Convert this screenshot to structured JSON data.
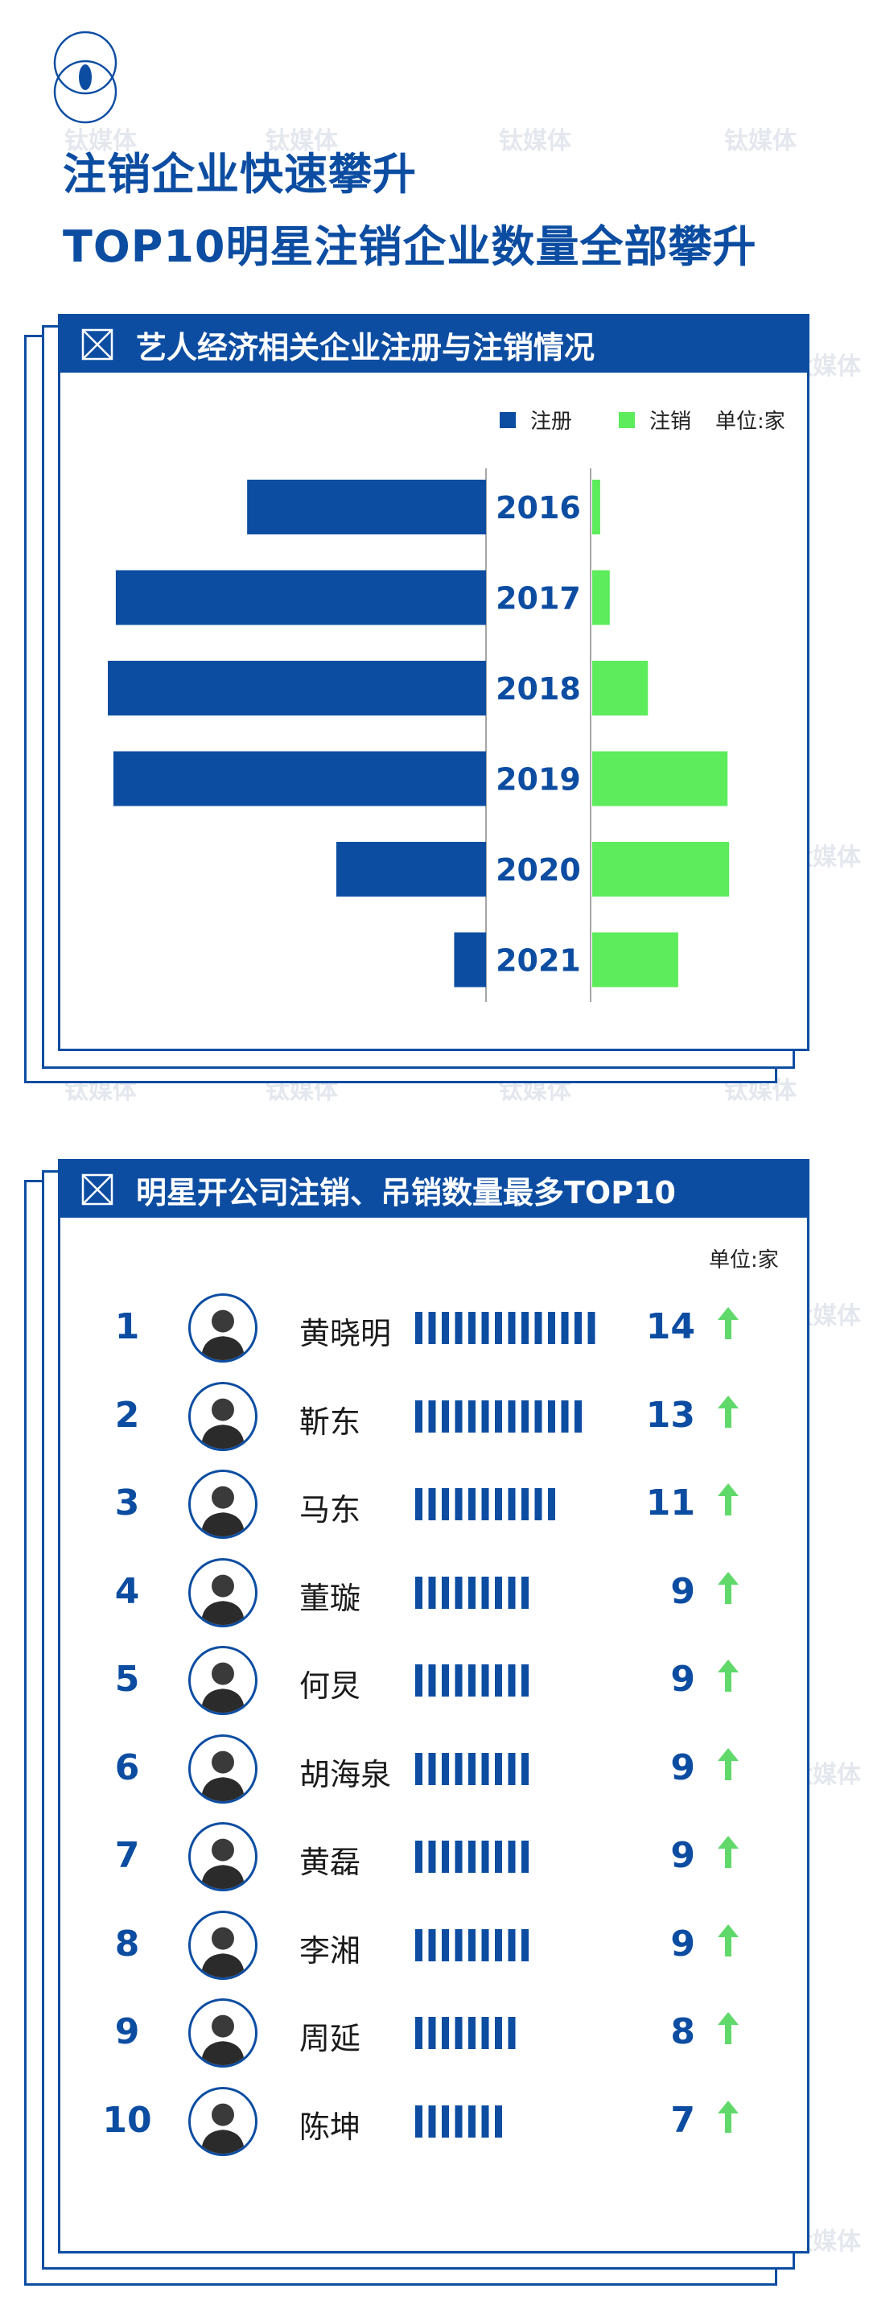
{
  "headline": {
    "line1": "注销企业快速攀升",
    "line2": "TOP10明星注销企业数量全部攀升"
  },
  "watermark": "钛媒体",
  "icons": {
    "logo": "circle-logo-icon",
    "panel_marker": "x-box-icon",
    "trend": "up-arrow-icon",
    "avatar": "person-avatar-icon"
  },
  "colors": {
    "brand_blue": "#0c4da2",
    "cancel_green": "#5cec5c",
    "arrow_green": "#61d96a"
  },
  "panel1": {
    "title": "艺人经济相关企业注册与注销情况",
    "legend": {
      "registered": "注册",
      "cancelled": "注销",
      "unit": "单位:家"
    }
  },
  "panel2": {
    "title": "明星开公司注销、吊销数量最多TOP10",
    "unit": "单位:家"
  },
  "chart_data": [
    {
      "type": "bar",
      "orientation": "horizontal-butterfly",
      "categories": [
        "2016",
        "2017",
        "2018",
        "2019",
        "2020",
        "2021"
      ],
      "series": [
        {
          "name": "注册",
          "color": "#0c4da2",
          "direction": "left",
          "values": [
            300,
            465,
            475,
            468,
            188,
            40
          ]
        },
        {
          "name": "注销",
          "color": "#5cec5c",
          "direction": "right",
          "values": [
            10,
            22,
            70,
            170,
            172,
            108
          ]
        }
      ],
      "unit": "单位:家",
      "axis_labels_shown": false,
      "grid": false,
      "legend_position": "top-right"
    },
    {
      "type": "bar",
      "orientation": "horizontal-ranking",
      "title": "明星开公司注销、吊销数量最多TOP10",
      "unit": "单位:家",
      "categories": [
        "黄晓明",
        "靳东",
        "马东",
        "董璇",
        "何炅",
        "胡海泉",
        "黄磊",
        "李湘",
        "周延",
        "陈坤"
      ],
      "ranks": [
        "1",
        "2",
        "3",
        "4",
        "5",
        "6",
        "7",
        "8",
        "9",
        "10"
      ],
      "values": [
        14,
        13,
        11,
        9,
        9,
        9,
        9,
        9,
        8,
        7
      ],
      "value_labels": [
        "14",
        "13",
        "11",
        "9",
        "9",
        "9",
        "9",
        "9",
        "8",
        "7"
      ],
      "trend": [
        "up",
        "up",
        "up",
        "up",
        "up",
        "up",
        "up",
        "up",
        "up",
        "up"
      ],
      "bar_style": "segmented-one-segment-per-unit"
    }
  ]
}
